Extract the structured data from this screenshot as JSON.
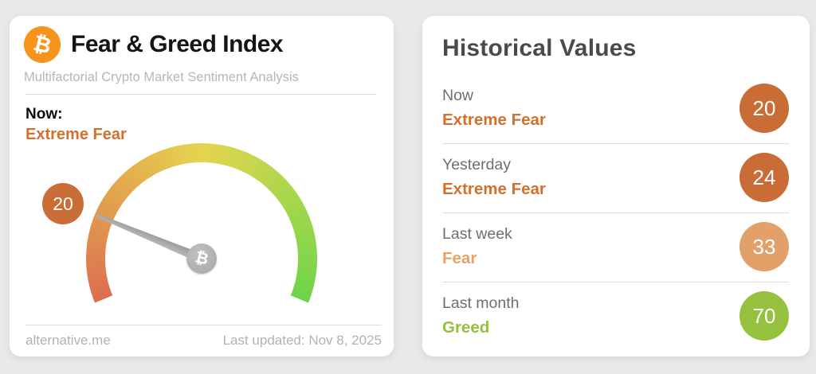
{
  "page": {
    "background_color": "#e9e9e9"
  },
  "gauge_card": {
    "logo": {
      "icon": "bitcoin-icon",
      "symbol": "₿",
      "color": "#f7931a"
    },
    "title": "Fear & Greed Index",
    "subtitle": "Multifactorial Crypto Market Sentiment Analysis",
    "now_label": "Now:",
    "now_classification": "Extreme Fear",
    "now_classification_color": "#d2702d",
    "gauge": {
      "value": 20,
      "min": 0,
      "max": 100,
      "badge_value": "20",
      "badge_color": "#cb6d36",
      "needle_color": "#a9a9a9",
      "hub_symbol": "₿",
      "gradient": [
        "#dc6e50",
        "#e2a24e",
        "#e6d44f",
        "#a6d74c",
        "#6fd44a"
      ]
    },
    "footer": {
      "site": "alternative.me",
      "last_updated": "Last updated: Nov 8, 2025"
    }
  },
  "historical_card": {
    "title": "Historical Values",
    "rows": [
      {
        "label": "Now",
        "classification": "Extreme Fear",
        "value": "20",
        "classification_color": "#d2702d",
        "circle_color": "#c96c35"
      },
      {
        "label": "Yesterday",
        "classification": "Extreme Fear",
        "value": "24",
        "classification_color": "#d2702d",
        "circle_color": "#c96c35"
      },
      {
        "label": "Last week",
        "classification": "Fear",
        "value": "33",
        "classification_color": "#e9a266",
        "circle_color": "#e2a169"
      },
      {
        "label": "Last month",
        "classification": "Greed",
        "value": "70",
        "classification_color": "#93c13e",
        "circle_color": "#95c13f"
      }
    ]
  },
  "chart_data": {
    "type": "gauge",
    "title": "Fear & Greed Index",
    "subtitle": "Multifactorial Crypto Market Sentiment Analysis",
    "value": 20,
    "range": [
      0,
      100
    ],
    "classification": "Extreme Fear",
    "arc_sweep_degrees": 225,
    "scale_gradient": [
      "#dc6e50",
      "#e6d44f",
      "#6fd44a"
    ],
    "historical": [
      {
        "label": "Now",
        "value": 20,
        "classification": "Extreme Fear"
      },
      {
        "label": "Yesterday",
        "value": 24,
        "classification": "Extreme Fear"
      },
      {
        "label": "Last week",
        "value": 33,
        "classification": "Fear"
      },
      {
        "label": "Last month",
        "value": 70,
        "classification": "Greed"
      }
    ]
  }
}
